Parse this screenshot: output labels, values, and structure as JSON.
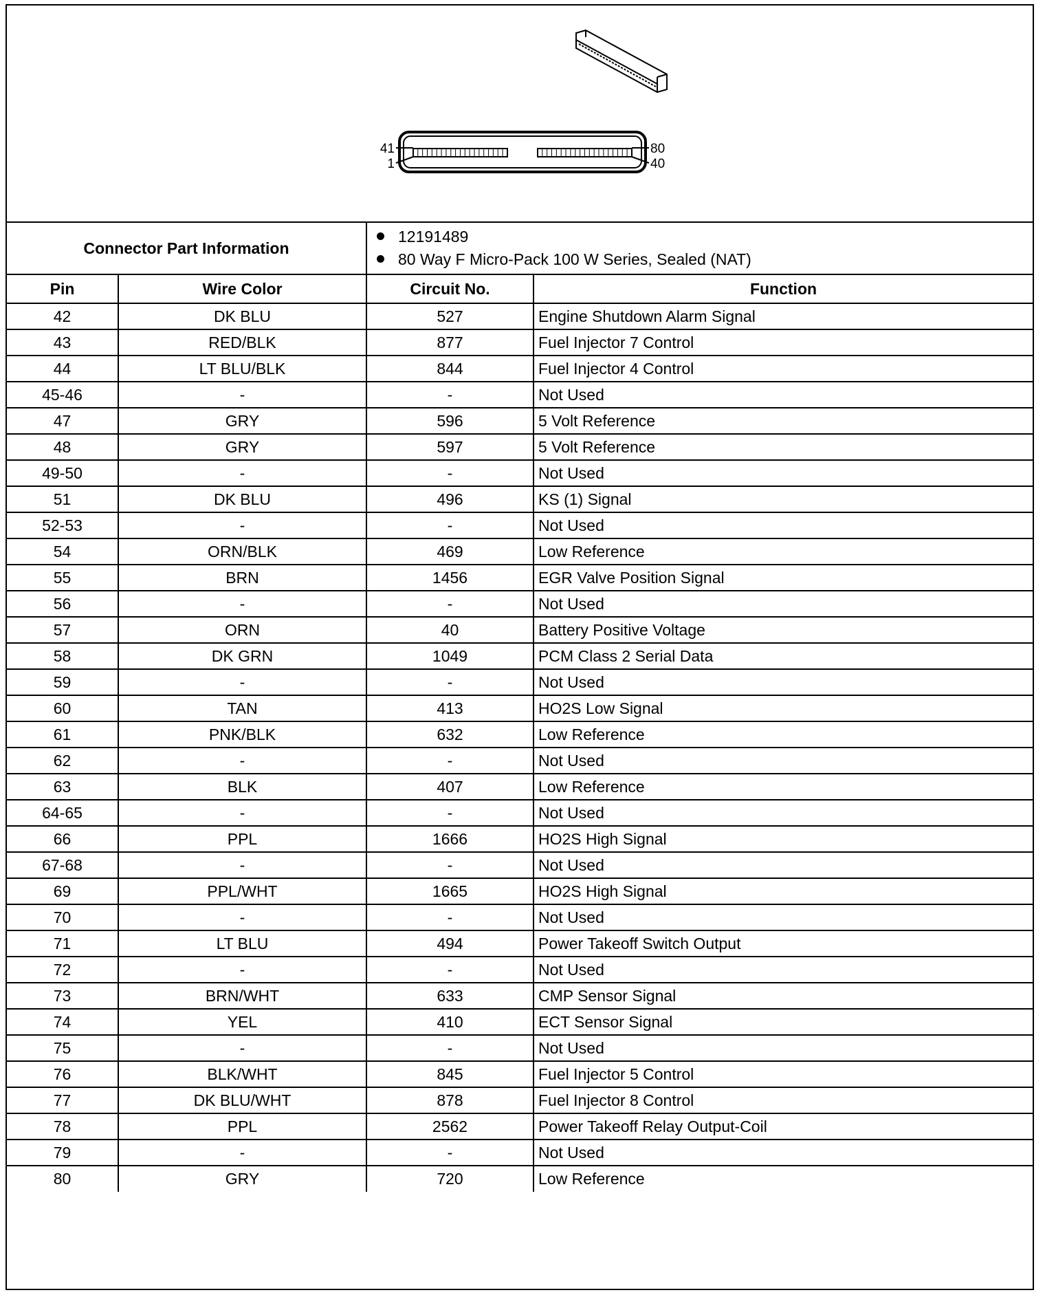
{
  "diagram": {
    "pin_labels": {
      "top_left": "41",
      "bottom_left": "1",
      "top_right": "80",
      "bottom_right": "40"
    }
  },
  "connector_info": {
    "label": "Connector Part Information",
    "items": [
      "12191489",
      "80 Way F Micro-Pack 100 W Series, Sealed (NAT)"
    ]
  },
  "columns": [
    "Pin",
    "Wire Color",
    "Circuit No.",
    "Function"
  ],
  "rows": [
    [
      "42",
      "DK BLU",
      "527",
      "Engine Shutdown Alarm Signal"
    ],
    [
      "43",
      "RED/BLK",
      "877",
      "Fuel Injector 7 Control"
    ],
    [
      "44",
      "LT BLU/BLK",
      "844",
      "Fuel Injector 4 Control"
    ],
    [
      "45-46",
      "-",
      "-",
      "Not Used"
    ],
    [
      "47",
      "GRY",
      "596",
      "5 Volt Reference"
    ],
    [
      "48",
      "GRY",
      "597",
      "5 Volt Reference"
    ],
    [
      "49-50",
      "-",
      "-",
      "Not Used"
    ],
    [
      "51",
      "DK BLU",
      "496",
      "KS (1) Signal"
    ],
    [
      "52-53",
      "-",
      "-",
      "Not Used"
    ],
    [
      "54",
      "ORN/BLK",
      "469",
      "Low Reference"
    ],
    [
      "55",
      "BRN",
      "1456",
      "EGR Valve Position Signal"
    ],
    [
      "56",
      "-",
      "-",
      "Not Used"
    ],
    [
      "57",
      "ORN",
      "40",
      "Battery Positive Voltage"
    ],
    [
      "58",
      "DK GRN",
      "1049",
      "PCM Class 2 Serial Data"
    ],
    [
      "59",
      "-",
      "-",
      "Not Used"
    ],
    [
      "60",
      "TAN",
      "413",
      "HO2S Low Signal"
    ],
    [
      "61",
      "PNK/BLK",
      "632",
      "Low Reference"
    ],
    [
      "62",
      "-",
      "-",
      "Not Used"
    ],
    [
      "63",
      "BLK",
      "407",
      "Low Reference"
    ],
    [
      "64-65",
      "-",
      "-",
      "Not Used"
    ],
    [
      "66",
      "PPL",
      "1666",
      "HO2S High Signal"
    ],
    [
      "67-68",
      "-",
      "-",
      "Not Used"
    ],
    [
      "69",
      "PPL/WHT",
      "1665",
      "HO2S High Signal"
    ],
    [
      "70",
      "-",
      "-",
      "Not Used"
    ],
    [
      "71",
      "LT BLU",
      "494",
      "Power Takeoff Switch Output"
    ],
    [
      "72",
      "-",
      "-",
      "Not Used"
    ],
    [
      "73",
      "BRN/WHT",
      "633",
      "CMP Sensor Signal"
    ],
    [
      "74",
      "YEL",
      "410",
      "ECT Sensor Signal"
    ],
    [
      "75",
      "-",
      "-",
      "Not Used"
    ],
    [
      "76",
      "BLK/WHT",
      "845",
      "Fuel Injector 5 Control"
    ],
    [
      "77",
      "DK BLU/WHT",
      "878",
      "Fuel Injector 8 Control"
    ],
    [
      "78",
      "PPL",
      "2562",
      "Power Takeoff Relay Output-Coil"
    ],
    [
      "79",
      "-",
      "-",
      "Not Used"
    ],
    [
      "80",
      "GRY",
      "720",
      "Low Reference"
    ]
  ]
}
